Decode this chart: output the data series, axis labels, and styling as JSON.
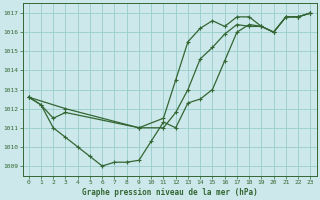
{
  "title": "Graphe pression niveau de la mer (hPa)",
  "background_color": "#cce8ea",
  "grid_color": "#99cccc",
  "line_color": "#336633",
  "xlim": [
    -0.5,
    23.5
  ],
  "ylim": [
    1008.5,
    1017.5
  ],
  "xticks": [
    0,
    1,
    2,
    3,
    4,
    5,
    6,
    7,
    8,
    9,
    10,
    11,
    12,
    13,
    14,
    15,
    16,
    17,
    18,
    19,
    20,
    21,
    22,
    23
  ],
  "yticks": [
    1009,
    1010,
    1011,
    1012,
    1013,
    1014,
    1015,
    1016,
    1017
  ],
  "series1_x": [
    0,
    1,
    2,
    3,
    4,
    5,
    6,
    7,
    8,
    9,
    10,
    11,
    12,
    13,
    14,
    15,
    16,
    17,
    18,
    19,
    20,
    21,
    22,
    23
  ],
  "series1_y": [
    1012.6,
    1012.2,
    1011.0,
    1010.5,
    1010.0,
    1009.5,
    1009.0,
    1009.2,
    1009.2,
    1009.3,
    1010.3,
    1011.3,
    1011.0,
    1012.3,
    1012.5,
    1013.0,
    1014.5,
    1016.0,
    1016.4,
    1016.3,
    1016.0,
    1016.8,
    1016.8,
    1017.0
  ],
  "series2_x": [
    0,
    3,
    9,
    11,
    12,
    13,
    14,
    15,
    16,
    17,
    18,
    19,
    20,
    21,
    22,
    23
  ],
  "series2_y": [
    1012.6,
    1012.0,
    1011.0,
    1011.0,
    1011.8,
    1013.0,
    1014.6,
    1015.2,
    1015.9,
    1016.4,
    1016.3,
    1016.3,
    1016.0,
    1016.8,
    1016.8,
    1017.0
  ],
  "series3_x": [
    0,
    1,
    2,
    3,
    9,
    11,
    12,
    13,
    14,
    15,
    16,
    17,
    18,
    19,
    20,
    21,
    22,
    23
  ],
  "series3_y": [
    1012.6,
    1012.2,
    1011.5,
    1011.8,
    1011.0,
    1011.5,
    1013.5,
    1015.5,
    1016.2,
    1016.6,
    1016.3,
    1016.8,
    1016.8,
    1016.3,
    1016.0,
    1016.8,
    1016.8,
    1017.0
  ]
}
